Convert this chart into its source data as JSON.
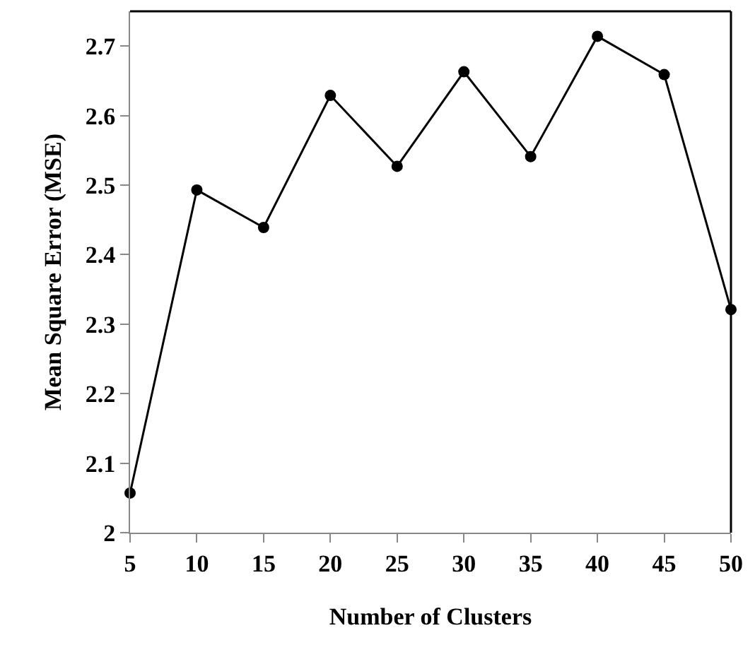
{
  "chart_data": {
    "type": "line",
    "xlabel": "Number of Clusters",
    "ylabel": "Mean Square Error (MSE)",
    "x": [
      5,
      10,
      15,
      20,
      25,
      30,
      35,
      40,
      45,
      50
    ],
    "series": [
      {
        "color": "#000000",
        "values": [
          2.057,
          2.493,
          2.439,
          2.629,
          2.527,
          2.663,
          2.541,
          2.714,
          2.659,
          2.321
        ]
      }
    ],
    "xlim": [
      5,
      50
    ],
    "xticks": [
      5,
      10,
      15,
      20,
      25,
      30,
      35,
      40,
      45,
      50
    ],
    "ylim": [
      2,
      2.75
    ],
    "yticks": [
      2,
      2.1,
      2.2,
      2.3,
      2.4,
      2.5,
      2.6,
      2.7
    ],
    "marker": "circle",
    "line_style": "solid"
  }
}
